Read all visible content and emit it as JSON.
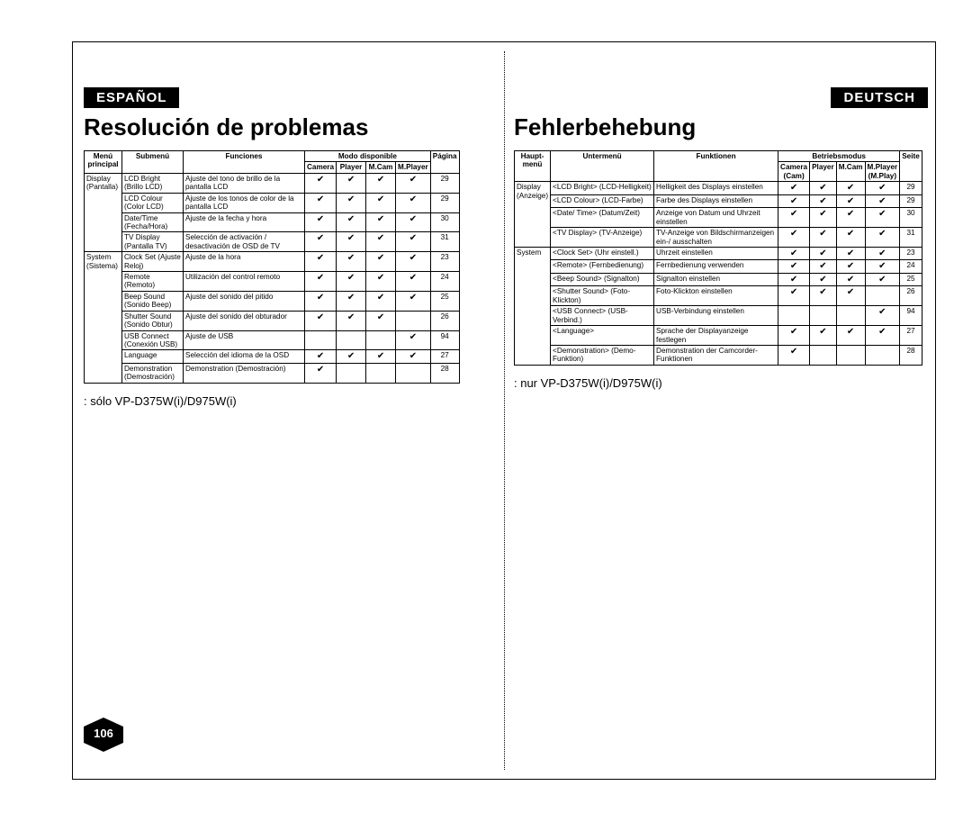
{
  "left": {
    "langTab": "ESPAÑOL",
    "title": "Resolución de problemas",
    "footnote": ": sólo VP-D375W(i)/D975W(i)",
    "headers": {
      "menu": "Menú principal",
      "sub": "Submenú",
      "func": "Funciones",
      "modeGroup": "Modo disponible",
      "m1": "Camera",
      "m2": "Player",
      "m3": "M.Cam",
      "m4": "M.Player",
      "page": "Página"
    },
    "groups": [
      {
        "menu": "Display (Pantalla)",
        "rows": [
          {
            "sub": "LCD Bright (Brillo LCD)",
            "func": "Ajuste del tono de brillo de la pantalla LCD",
            "c": [
              1,
              1,
              1,
              1
            ],
            "p": "29"
          },
          {
            "sub": "LCD Colour (Color LCD)",
            "func": "Ajuste de los tonos de color de la pantalla LCD",
            "c": [
              1,
              1,
              1,
              1
            ],
            "p": "29"
          },
          {
            "sub": "Date/Time (Fecha/Hora)",
            "func": "Ajuste de la fecha y hora",
            "c": [
              1,
              1,
              1,
              1
            ],
            "p": "30"
          },
          {
            "sub": "TV Display (Pantalla TV)",
            "func": "Selección de activación / desactivación de OSD de TV",
            "c": [
              1,
              1,
              1,
              1
            ],
            "p": "31"
          }
        ]
      },
      {
        "menu": "System (Sistema)",
        "rows": [
          {
            "sub": "Clock Set (Ajuste Reloj)",
            "func": "Ajuste de la hora",
            "c": [
              1,
              1,
              1,
              1
            ],
            "p": "23"
          },
          {
            "sub": "Remote (Remoto)",
            "func": "Utilización del control remoto",
            "c": [
              1,
              1,
              1,
              1
            ],
            "p": "24"
          },
          {
            "sub": "Beep Sound (Sonido Beep)",
            "func": "Ajuste del sonido del pitido",
            "c": [
              1,
              1,
              1,
              1
            ],
            "p": "25"
          },
          {
            "sub": "Shutter Sound (Sonido Obtur)",
            "func": "Ajuste del sonido del obturador",
            "c": [
              1,
              1,
              1,
              0
            ],
            "p": "26"
          },
          {
            "sub": "USB Connect (Conexión USB)",
            "func": "Ajuste de USB",
            "c": [
              0,
              0,
              0,
              1
            ],
            "p": "94"
          },
          {
            "sub": "Language",
            "func": "Selección del idioma de la OSD",
            "c": [
              1,
              1,
              1,
              1
            ],
            "p": "27"
          },
          {
            "sub": "Demonstration (Demostración)",
            "func": "Demonstration (Demostración)",
            "c": [
              1,
              0,
              0,
              0
            ],
            "p": "28"
          }
        ]
      }
    ]
  },
  "right": {
    "langTab": "DEUTSCH",
    "title": "Fehlerbehebung",
    "footnote": ": nur VP-D375W(i)/D975W(i)",
    "headers": {
      "menu": "Haupt-menü",
      "sub": "Untermenü",
      "func": "Funktionen",
      "modeGroup": "Betriebsmodus",
      "m1": "Camera (Cam)",
      "m2": "Player",
      "m3": "M.Cam",
      "m4": "M.Player (M.Play)",
      "page": "Seite"
    },
    "groups": [
      {
        "menu": "Display (Anzeige)",
        "rows": [
          {
            "sub": "<LCD Bright> (LCD-Helligkeit)",
            "func": "Helligkeit des Displays einstellen",
            "c": [
              1,
              1,
              1,
              1
            ],
            "p": "29"
          },
          {
            "sub": "<LCD Colour> (LCD-Farbe)",
            "func": "Farbe des Displays einstellen",
            "c": [
              1,
              1,
              1,
              1
            ],
            "p": "29"
          },
          {
            "sub": "<Date/ Time> (Datum/Zeit)",
            "func": "Anzeige von Datum und Uhrzeit einstellen",
            "c": [
              1,
              1,
              1,
              1
            ],
            "p": "30"
          },
          {
            "sub": "<TV Display> (TV-Anzeige)",
            "func": "TV-Anzeige von Bildschirmanzeigen ein-/ ausschalten",
            "c": [
              1,
              1,
              1,
              1
            ],
            "p": "31"
          }
        ]
      },
      {
        "menu": "System",
        "rows": [
          {
            "sub": "<Clock Set> (Uhr einstell.)",
            "func": "Uhrzeit einstellen",
            "c": [
              1,
              1,
              1,
              1
            ],
            "p": "23"
          },
          {
            "sub": "<Remote>     (Fernbedienung)",
            "func": "Fernbedienung verwenden",
            "c": [
              1,
              1,
              1,
              1
            ],
            "p": "24"
          },
          {
            "sub": "<Beep Sound> (Signalton)",
            "func": "Signalton einstellen",
            "c": [
              1,
              1,
              1,
              1
            ],
            "p": "25"
          },
          {
            "sub": "<Shutter Sound> (Foto-Klickton)",
            "func": "Foto-Klickton einstellen",
            "c": [
              1,
              1,
              1,
              0
            ],
            "p": "26"
          },
          {
            "sub": "<USB Connect> (USB-Verbind.)",
            "func": "USB-Verbindung einstellen",
            "c": [
              0,
              0,
              0,
              1
            ],
            "p": "94"
          },
          {
            "sub": "<Language>",
            "func": "Sprache der Displayanzeige festlegen",
            "c": [
              1,
              1,
              1,
              1
            ],
            "p": "27"
          },
          {
            "sub": "<Demonstration> (Demo-Funktion)",
            "func": "Demonstration der Camcorder-Funktionen",
            "c": [
              1,
              0,
              0,
              0
            ],
            "p": "28"
          }
        ]
      }
    ]
  },
  "pageNumber": "106",
  "checkGlyph": "✔"
}
